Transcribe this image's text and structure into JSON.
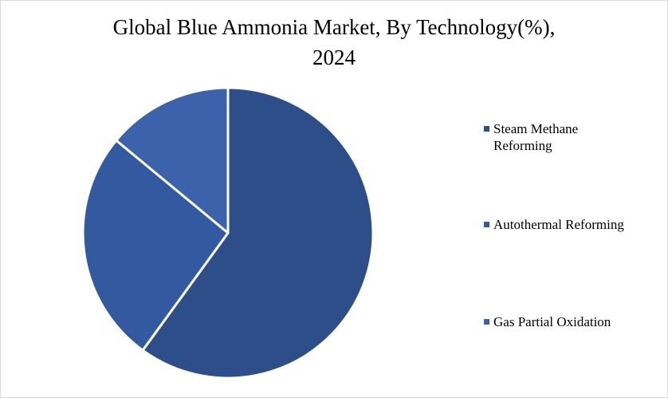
{
  "chart_data": {
    "type": "pie",
    "title_lines": [
      "Global Blue Ammonia Market, By Technology(%),",
      "2024"
    ],
    "categories": [
      "Steam Methane Reforming",
      "Autothermal Reforming",
      "Gas Partial Oxidation"
    ],
    "values": [
      60,
      26,
      14
    ],
    "colors": [
      "#2e4e8a",
      "#3359a0",
      "#3b62ab"
    ],
    "legend_position": "right",
    "legend_lines": [
      [
        "Steam Methane",
        "Reforming"
      ],
      [
        "Autothermal Reforming"
      ],
      [
        "Gas Partial Oxidation"
      ]
    ]
  }
}
